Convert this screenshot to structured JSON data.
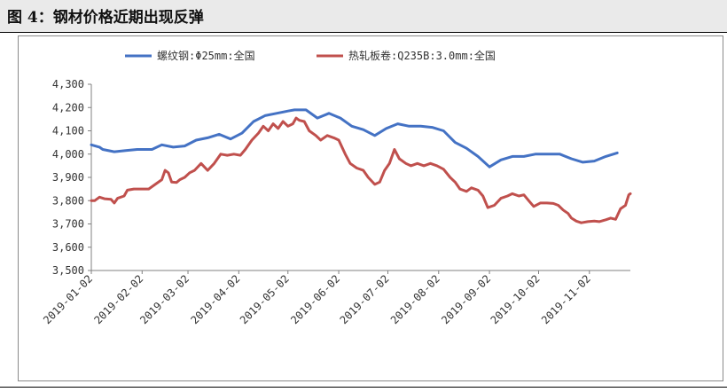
{
  "page": {
    "title": "图 4：钢材价格近期出现反弹"
  },
  "chart_data": {
    "type": "line",
    "title": "",
    "xlabel": "",
    "ylabel": "",
    "ylim": [
      3500,
      4300
    ],
    "yticks": [
      3500,
      3600,
      3700,
      3800,
      3900,
      4000,
      4100,
      4200,
      4300
    ],
    "ytick_labels": [
      "3,500",
      "3,600",
      "3,700",
      "3,800",
      "3,900",
      "4,000",
      "4,100",
      "4,200",
      "4,300"
    ],
    "x_range": [
      "2019-01-02",
      "2019-11-27"
    ],
    "xticks": [
      "2019-01-02",
      "2019-02-02",
      "2019-03-02",
      "2019-04-02",
      "2019-05-02",
      "2019-06-02",
      "2019-07-02",
      "2019-08-02",
      "2019-09-02",
      "2019-10-02",
      "2019-11-02"
    ],
    "legend_position": "top",
    "grid": false,
    "series": [
      {
        "name": "螺纹钢:Φ25mm:全国",
        "color": "#4472c4",
        "points": [
          [
            "2019-01-02",
            4040
          ],
          [
            "2019-01-07",
            4030
          ],
          [
            "2019-01-09",
            4020
          ],
          [
            "2019-01-16",
            4010
          ],
          [
            "2019-01-23",
            4015
          ],
          [
            "2019-01-30",
            4020
          ],
          [
            "2019-02-08",
            4020
          ],
          [
            "2019-02-14",
            4040
          ],
          [
            "2019-02-21",
            4030
          ],
          [
            "2019-02-28",
            4035
          ],
          [
            "2019-03-07",
            4060
          ],
          [
            "2019-03-14",
            4070
          ],
          [
            "2019-03-21",
            4085
          ],
          [
            "2019-03-28",
            4065
          ],
          [
            "2019-04-04",
            4090
          ],
          [
            "2019-04-11",
            4140
          ],
          [
            "2019-04-18",
            4165
          ],
          [
            "2019-04-25",
            4175
          ],
          [
            "2019-05-02",
            4185
          ],
          [
            "2019-05-06",
            4190
          ],
          [
            "2019-05-13",
            4190
          ],
          [
            "2019-05-20",
            4155
          ],
          [
            "2019-05-27",
            4175
          ],
          [
            "2019-06-03",
            4155
          ],
          [
            "2019-06-10",
            4120
          ],
          [
            "2019-06-17",
            4105
          ],
          [
            "2019-06-24",
            4080
          ],
          [
            "2019-07-01",
            4110
          ],
          [
            "2019-07-08",
            4130
          ],
          [
            "2019-07-15",
            4120
          ],
          [
            "2019-07-22",
            4120
          ],
          [
            "2019-07-29",
            4115
          ],
          [
            "2019-08-05",
            4100
          ],
          [
            "2019-08-12",
            4050
          ],
          [
            "2019-08-19",
            4025
          ],
          [
            "2019-08-26",
            3990
          ],
          [
            "2019-09-02",
            3945
          ],
          [
            "2019-09-09",
            3975
          ],
          [
            "2019-09-16",
            3990
          ],
          [
            "2019-09-23",
            3990
          ],
          [
            "2019-09-30",
            4000
          ],
          [
            "2019-10-08",
            4000
          ],
          [
            "2019-10-15",
            4000
          ],
          [
            "2019-10-22",
            3980
          ],
          [
            "2019-10-29",
            3965
          ],
          [
            "2019-11-05",
            3970
          ],
          [
            "2019-11-12",
            3990
          ],
          [
            "2019-11-19",
            4005
          ]
        ]
      },
      {
        "name": "热轧板卷:Q235B:3.0mm:全国",
        "color": "#c0504d",
        "points": [
          [
            "2019-01-02",
            3800
          ],
          [
            "2019-01-04",
            3800
          ],
          [
            "2019-01-07",
            3815
          ],
          [
            "2019-01-10",
            3808
          ],
          [
            "2019-01-14",
            3806
          ],
          [
            "2019-01-16",
            3790
          ],
          [
            "2019-01-18",
            3810
          ],
          [
            "2019-01-22",
            3820
          ],
          [
            "2019-01-24",
            3845
          ],
          [
            "2019-01-28",
            3850
          ],
          [
            "2019-02-01",
            3850
          ],
          [
            "2019-02-06",
            3850
          ],
          [
            "2019-02-10",
            3870
          ],
          [
            "2019-02-14",
            3890
          ],
          [
            "2019-02-16",
            3930
          ],
          [
            "2019-02-18",
            3920
          ],
          [
            "2019-02-20",
            3880
          ],
          [
            "2019-02-23",
            3878
          ],
          [
            "2019-02-25",
            3890
          ],
          [
            "2019-02-28",
            3900
          ],
          [
            "2019-03-03",
            3920
          ],
          [
            "2019-03-06",
            3930
          ],
          [
            "2019-03-10",
            3960
          ],
          [
            "2019-03-14",
            3930
          ],
          [
            "2019-03-18",
            3960
          ],
          [
            "2019-03-22",
            4000
          ],
          [
            "2019-03-26",
            3995
          ],
          [
            "2019-03-30",
            4000
          ],
          [
            "2019-04-03",
            3995
          ],
          [
            "2019-04-06",
            4020
          ],
          [
            "2019-04-10",
            4060
          ],
          [
            "2019-04-14",
            4090
          ],
          [
            "2019-04-17",
            4120
          ],
          [
            "2019-04-20",
            4100
          ],
          [
            "2019-04-23",
            4130
          ],
          [
            "2019-04-26",
            4110
          ],
          [
            "2019-04-29",
            4140
          ],
          [
            "2019-05-02",
            4120
          ],
          [
            "2019-05-05",
            4130
          ],
          [
            "2019-05-07",
            4155
          ],
          [
            "2019-05-09",
            4145
          ],
          [
            "2019-05-12",
            4140
          ],
          [
            "2019-05-15",
            4100
          ],
          [
            "2019-05-19",
            4080
          ],
          [
            "2019-05-22",
            4060
          ],
          [
            "2019-05-26",
            4080
          ],
          [
            "2019-05-30",
            4070
          ],
          [
            "2019-06-02",
            4060
          ],
          [
            "2019-06-06",
            4000
          ],
          [
            "2019-06-09",
            3960
          ],
          [
            "2019-06-13",
            3940
          ],
          [
            "2019-06-17",
            3930
          ],
          [
            "2019-06-20",
            3900
          ],
          [
            "2019-06-24",
            3870
          ],
          [
            "2019-06-27",
            3880
          ],
          [
            "2019-06-30",
            3930
          ],
          [
            "2019-07-03",
            3960
          ],
          [
            "2019-07-06",
            4020
          ],
          [
            "2019-07-09",
            3980
          ],
          [
            "2019-07-13",
            3960
          ],
          [
            "2019-07-16",
            3950
          ],
          [
            "2019-07-20",
            3960
          ],
          [
            "2019-07-24",
            3950
          ],
          [
            "2019-07-28",
            3960
          ],
          [
            "2019-08-01",
            3950
          ],
          [
            "2019-08-05",
            3935
          ],
          [
            "2019-08-09",
            3900
          ],
          [
            "2019-08-12",
            3880
          ],
          [
            "2019-08-15",
            3850
          ],
          [
            "2019-08-19",
            3840
          ],
          [
            "2019-08-22",
            3855
          ],
          [
            "2019-08-26",
            3845
          ],
          [
            "2019-08-29",
            3820
          ],
          [
            "2019-09-01",
            3770
          ],
          [
            "2019-09-05",
            3780
          ],
          [
            "2019-09-09",
            3810
          ],
          [
            "2019-09-13",
            3820
          ],
          [
            "2019-09-16",
            3830
          ],
          [
            "2019-09-20",
            3820
          ],
          [
            "2019-09-23",
            3825
          ],
          [
            "2019-09-26",
            3800
          ],
          [
            "2019-09-29",
            3775
          ],
          [
            "2019-10-03",
            3790
          ],
          [
            "2019-10-07",
            3790
          ],
          [
            "2019-10-11",
            3788
          ],
          [
            "2019-10-14",
            3780
          ],
          [
            "2019-10-17",
            3760
          ],
          [
            "2019-10-20",
            3745
          ],
          [
            "2019-10-22",
            3725
          ],
          [
            "2019-10-25",
            3712
          ],
          [
            "2019-10-28",
            3705
          ],
          [
            "2019-11-01",
            3710
          ],
          [
            "2019-11-05",
            3712
          ],
          [
            "2019-11-08",
            3710
          ],
          [
            "2019-11-12",
            3718
          ],
          [
            "2019-11-15",
            3725
          ],
          [
            "2019-11-18",
            3720
          ],
          [
            "2019-11-21",
            3765
          ],
          [
            "2019-11-24",
            3780
          ],
          [
            "2019-11-26",
            3825
          ],
          [
            "2019-11-27",
            3830
          ]
        ]
      }
    ]
  }
}
